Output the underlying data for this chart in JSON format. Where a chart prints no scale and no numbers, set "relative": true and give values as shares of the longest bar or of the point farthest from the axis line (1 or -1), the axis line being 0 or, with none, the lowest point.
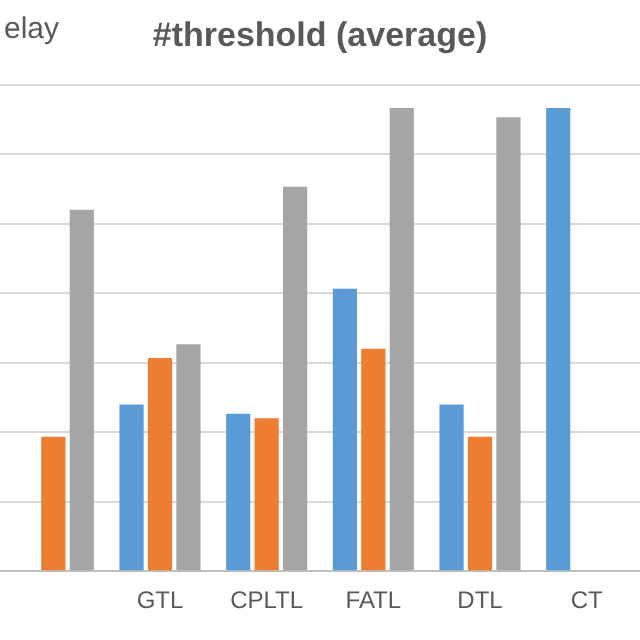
{
  "chart_data": {
    "type": "bar",
    "title": "#threshold (average)",
    "annotations": [
      "elay"
    ],
    "relative": true,
    "grid": "y",
    "legend": false,
    "categories": [
      null,
      "GTL",
      "CPLTL",
      "FATL",
      "DTL",
      "CT"
    ],
    "series": [
      {
        "color": "#5b9bd5",
        "values": [
          null,
          0.36,
          0.34,
          0.61,
          0.36,
          1.0
        ]
      },
      {
        "color": "#ed7d31",
        "values": [
          0.29,
          0.46,
          0.33,
          0.48,
          0.29,
          null
        ]
      },
      {
        "color": "#a5a5a5",
        "values": [
          0.78,
          0.49,
          0.83,
          1.0,
          0.98,
          null
        ]
      }
    ]
  }
}
